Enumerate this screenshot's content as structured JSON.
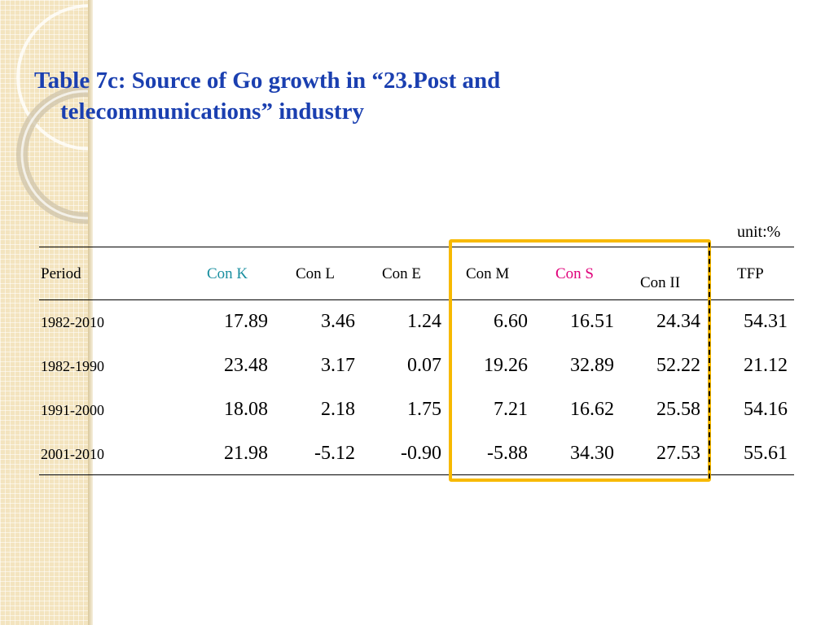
{
  "title_line1": "Table 7c: Source of Go growth in “23.Post and",
  "title_line2": "telecommunications” industry",
  "unit": "unit:%",
  "colors": {
    "title": "#1a3fb0",
    "con_k": "#1a8fa0",
    "con_s": "#e0007a",
    "highlight": "#f7b900"
  },
  "headers": {
    "period": "Period",
    "con_k": "Con K",
    "con_l": "Con L",
    "con_e": "Con E",
    "con_m": "Con M",
    "con_s": "Con S",
    "con_ii": "Con II",
    "tfp": "TFP"
  },
  "rows": [
    {
      "period": "1982-2010",
      "values": [
        "17.89",
        "3.46",
        "1.24",
        "6.60",
        "16.51",
        "24.34",
        "54.31"
      ]
    },
    {
      "period": "1982-1990",
      "values": [
        "23.48",
        "3.17",
        "0.07",
        "19.26",
        "32.89",
        "52.22",
        "21.12"
      ]
    },
    {
      "period": "1991-2000",
      "values": [
        "18.08",
        "2.18",
        "1.75",
        "7.21",
        "16.62",
        "25.58",
        "54.16"
      ]
    },
    {
      "period": "2001-2010",
      "values": [
        "21.98",
        "-5.12",
        "-0.90",
        "-5.88",
        "34.30",
        "27.53",
        "55.61"
      ]
    }
  ]
}
